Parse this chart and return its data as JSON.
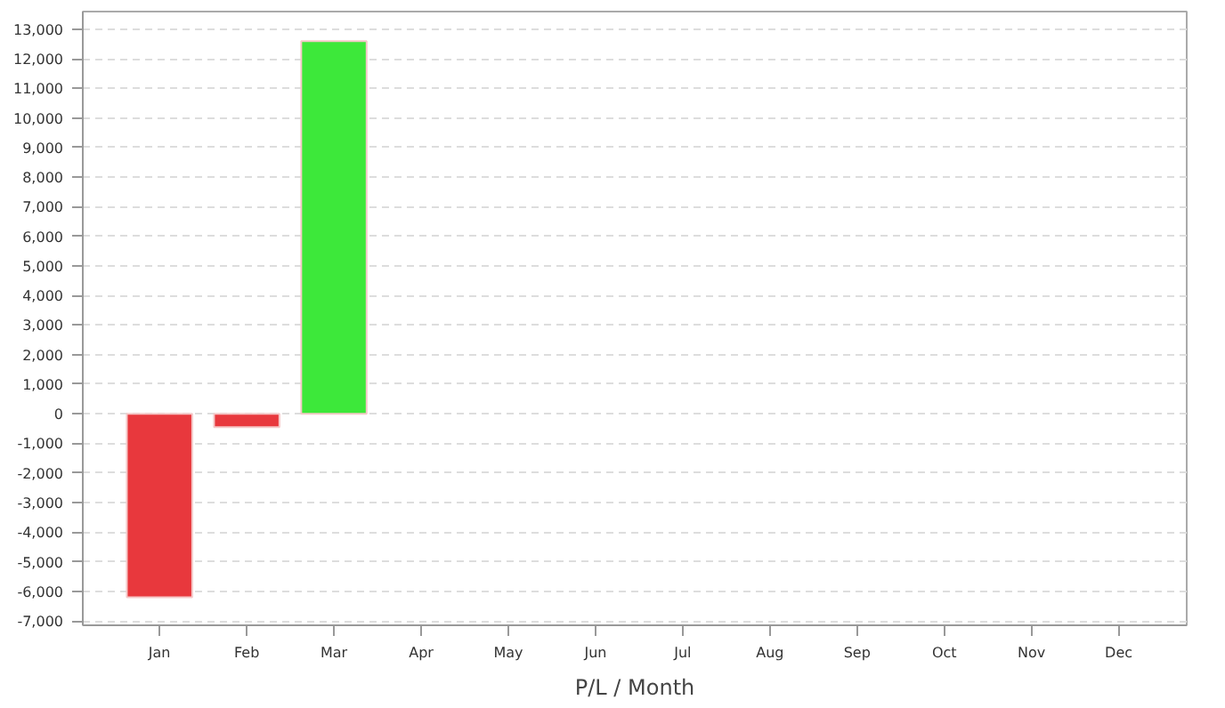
{
  "chart_data": {
    "type": "bar",
    "xlabel": "P/L / Month",
    "categories": [
      "Jan",
      "Feb",
      "Mar",
      "Apr",
      "May",
      "Jun",
      "Jul",
      "Aug",
      "Sep",
      "Oct",
      "Nov",
      "Dec"
    ],
    "values": [
      -6200,
      -450,
      12600,
      null,
      null,
      null,
      null,
      null,
      null,
      null,
      null,
      null
    ],
    "colors": [
      "#e8383d",
      "#e8383d",
      "#3de83a",
      null,
      null,
      null,
      null,
      null,
      null,
      null,
      null,
      null
    ],
    "ylim": [
      -7150,
      13600
    ],
    "yticks": [
      {
        "value": -7000,
        "label": "-7,000"
      },
      {
        "value": -6000,
        "label": "-6,000"
      },
      {
        "value": -5000,
        "label": "-5,000"
      },
      {
        "value": -4000,
        "label": "-4,000"
      },
      {
        "value": -3000,
        "label": "-3,000"
      },
      {
        "value": -2000,
        "label": "-2,000"
      },
      {
        "value": -1000,
        "label": "-1,000"
      },
      0,
      {
        "value": 1000,
        "label": "1,000"
      },
      {
        "value": 2000,
        "label": "2,000"
      },
      {
        "value": 3000,
        "label": "3,000"
      },
      {
        "value": 4000,
        "label": "4,000"
      },
      {
        "value": 5000,
        "label": "5,000"
      },
      {
        "value": 6000,
        "label": "6,000"
      },
      {
        "value": 7000,
        "label": "7,000"
      },
      {
        "value": 8000,
        "label": "8,000"
      },
      {
        "value": 9000,
        "label": "9,000"
      },
      {
        "value": 10000,
        "label": "10,000"
      },
      {
        "value": 11000,
        "label": "11,000"
      },
      {
        "value": 12000,
        "label": "12,000"
      },
      {
        "value": 13000,
        "label": "13,000"
      }
    ],
    "grid": "y"
  }
}
